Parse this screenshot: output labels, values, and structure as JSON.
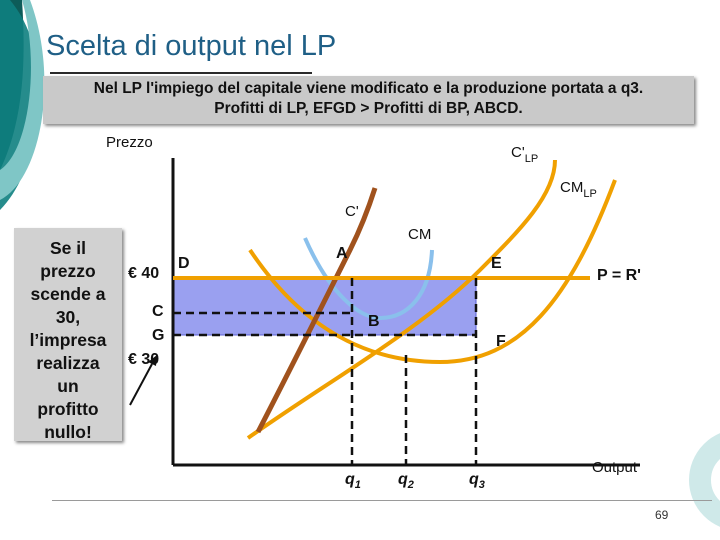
{
  "title": "Scelta di output nel LP",
  "subtitle": {
    "line1": "Nel LP l'impiego del capitale viene modificato e la produzione portata a q3.",
    "line2": "Profitti di LP, EFGD > Profitti di BP, ABCD."
  },
  "note": {
    "lines": [
      "Se il",
      "prezzo",
      "scende a",
      "30,",
      "l’impresa",
      "realizza",
      "un",
      "profitto",
      "nullo!"
    ]
  },
  "diagram": {
    "y_axis_label": "Prezzo",
    "x_axis_label": "Output",
    "price_labels": {
      "high": "€ 40",
      "low": "€ 30"
    },
    "point_labels": {
      "D": "D",
      "A": "A",
      "C": "C",
      "G": "G",
      "B": "B",
      "E": "E",
      "F": "F"
    },
    "curve_labels": {
      "cm_lp": "CM",
      "cm_lp_sub": "LP",
      "c_lp": "C'",
      "c_lp_sub": "LP",
      "c_short": "C'",
      "cm_short": "CM",
      "price_line": "P = R'"
    },
    "quantity_labels": {
      "q1": "q",
      "q1_sub": "1",
      "q2": "q",
      "q2_sub": "2",
      "q3": "q",
      "q3_sub": "3"
    },
    "colors": {
      "profit_area": "#9aa0f0",
      "profit_area_border": "#5a5fd0",
      "price_line": "#f0a000",
      "lr_marginal": "#f0a000",
      "lr_average": "#f0a000",
      "sr_marginal": "#a0521d",
      "sr_average": "#8ac0ec"
    }
  },
  "page_number": "69"
}
